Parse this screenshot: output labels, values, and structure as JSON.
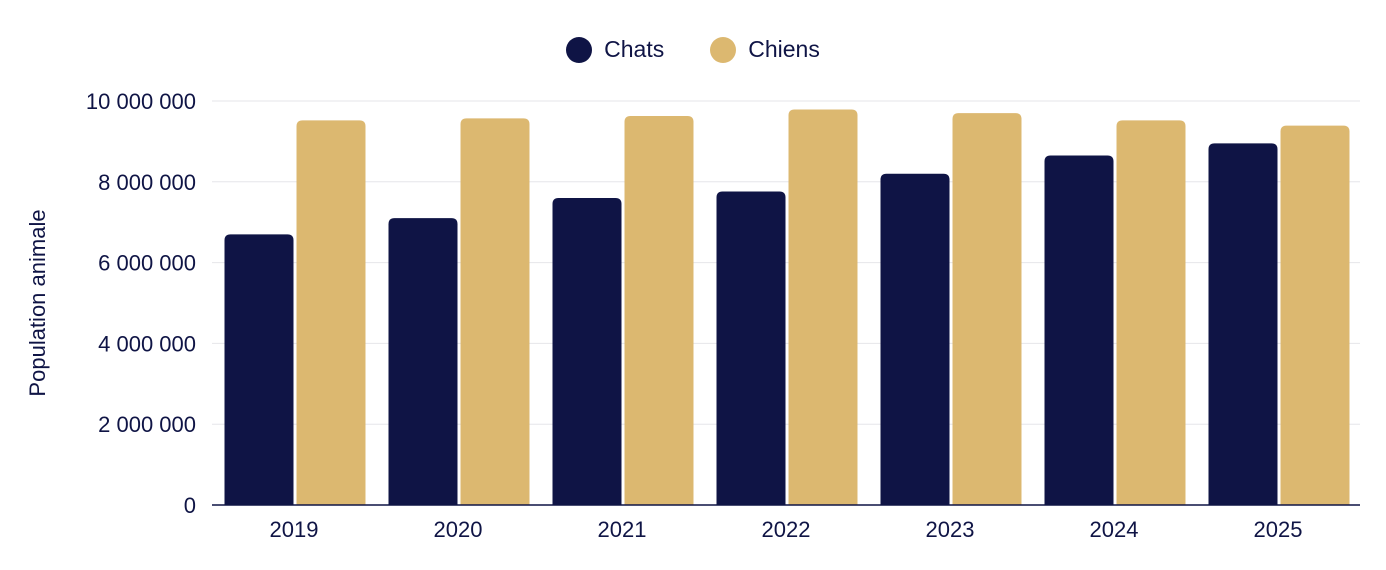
{
  "chart_data": {
    "type": "bar",
    "categories": [
      "2019",
      "2020",
      "2021",
      "2022",
      "2023",
      "2024",
      "2025"
    ],
    "series": [
      {
        "name": "Chats",
        "color": "#0f1445",
        "values": [
          6700000,
          7100000,
          7600000,
          7760000,
          8200000,
          8650000,
          8950000
        ]
      },
      {
        "name": "Chiens",
        "color": "#dcb870",
        "values": [
          9520000,
          9570000,
          9630000,
          9790000,
          9700000,
          9520000,
          9390000
        ]
      }
    ],
    "title": "",
    "xlabel": "",
    "ylabel": "Population animale",
    "ylim": [
      0,
      10000000
    ],
    "yticks": [
      0,
      2000000,
      4000000,
      6000000,
      8000000,
      10000000
    ],
    "ytick_labels": [
      "0",
      "2 000 000",
      "4 000 000",
      "6 000 000",
      "8 000 000",
      "10 000 000"
    ],
    "grid": true,
    "legend_position": "top-center"
  }
}
